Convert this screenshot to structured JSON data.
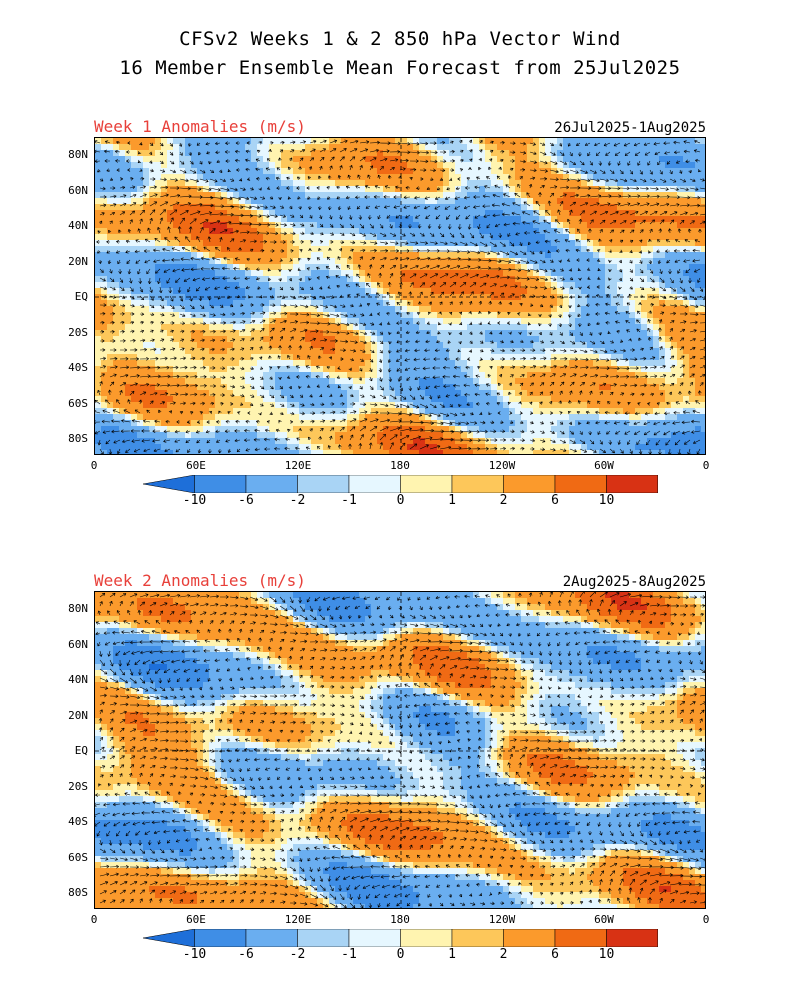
{
  "header": {
    "line1": "CFSv2 Weeks 1 & 2 850 hPa Vector Wind",
    "line2": "16 Member Ensemble Mean Forecast from 25Jul2025"
  },
  "panels": [
    {
      "id": "week1",
      "title": "Week 1 Anomalies (m/s)",
      "dates": "26Jul2025-1Aug2025",
      "seed": 11
    },
    {
      "id": "week2",
      "title": "Week 2 Anomalies (m/s)",
      "dates": "2Aug2025-8Aug2025",
      "seed": 29
    }
  ],
  "lat_ticks": [
    "80N",
    "60N",
    "40N",
    "20N",
    "EQ",
    "20S",
    "40S",
    "60S",
    "80S"
  ],
  "lon_ticks": [
    "0",
    "60E",
    "120E",
    "180",
    "120W",
    "60W",
    "0"
  ],
  "colorbar": {
    "labels": [
      "-10",
      "-6",
      "-2",
      "-1",
      "0",
      "1",
      "2",
      "6",
      "10"
    ],
    "colors": [
      "#1e6fd9",
      "#3f8ee6",
      "#6aaef0",
      "#a9d4f5",
      "#e6f7ff",
      "#fff4b0",
      "#fdc75a",
      "#fb9a2c",
      "#f06a14",
      "#d83214",
      "#a80f0a"
    ]
  }
}
